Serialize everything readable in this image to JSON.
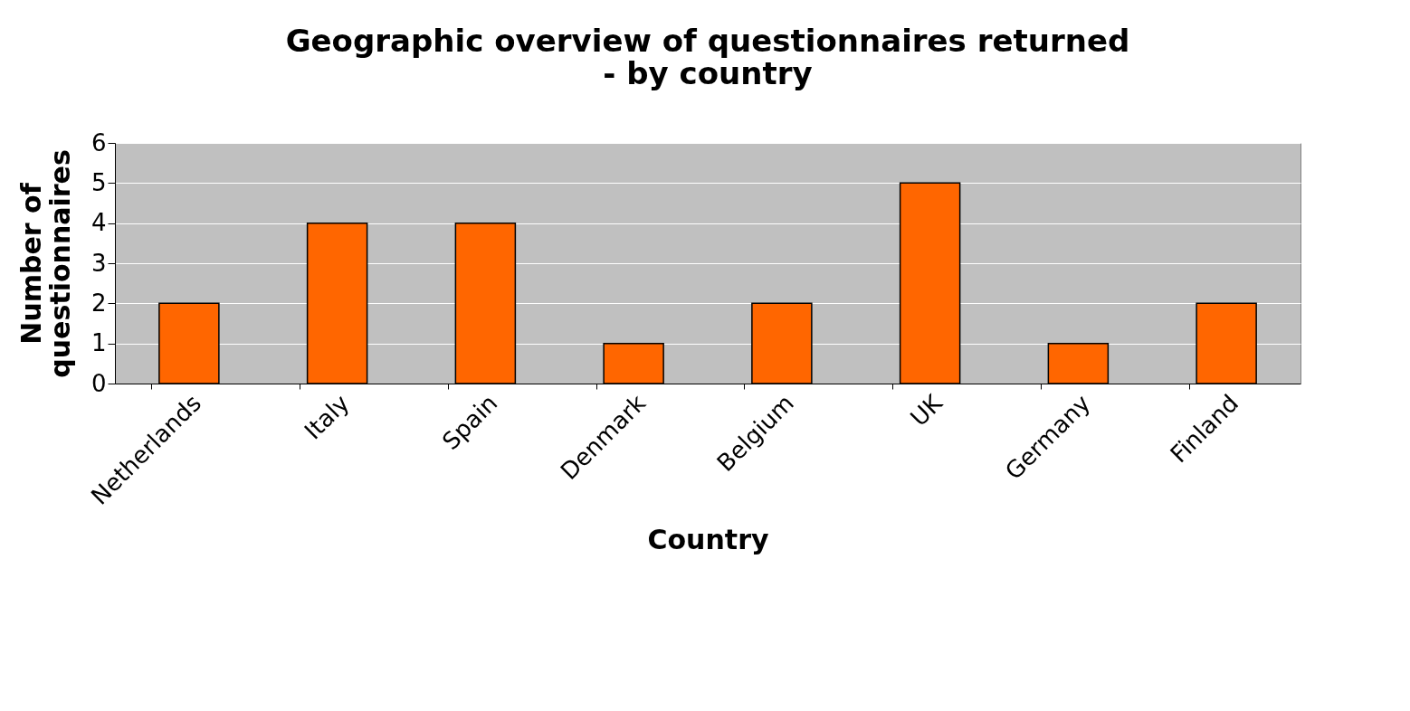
{
  "chart_data": {
    "type": "bar",
    "title": "Geographic overview of questionnaires returned\n- by country",
    "xlabel": "Country",
    "ylabel": "Number of\nquestionnaires",
    "categories": [
      "Netherlands",
      "Italy",
      "Spain",
      "Denmark",
      "Belgium",
      "UK",
      "Germany",
      "Finland"
    ],
    "values": [
      2,
      4,
      4,
      1,
      2,
      5,
      1,
      2
    ],
    "color": "#ff6600",
    "ylim": [
      0,
      6
    ],
    "yticks": [
      0,
      1,
      2,
      3,
      4,
      5,
      6
    ],
    "grid": "y"
  }
}
